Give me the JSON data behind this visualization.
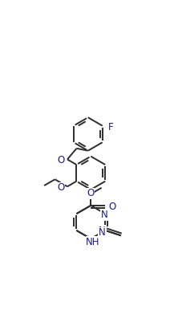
{
  "bg_color": "#ffffff",
  "bond_color": "#2d2d2d",
  "atom_color": "#1a1a8c",
  "lw": 1.4,
  "fs": 8.5,
  "xlim": [
    -3.5,
    5.5
  ],
  "ylim": [
    -4.5,
    5.5
  ]
}
